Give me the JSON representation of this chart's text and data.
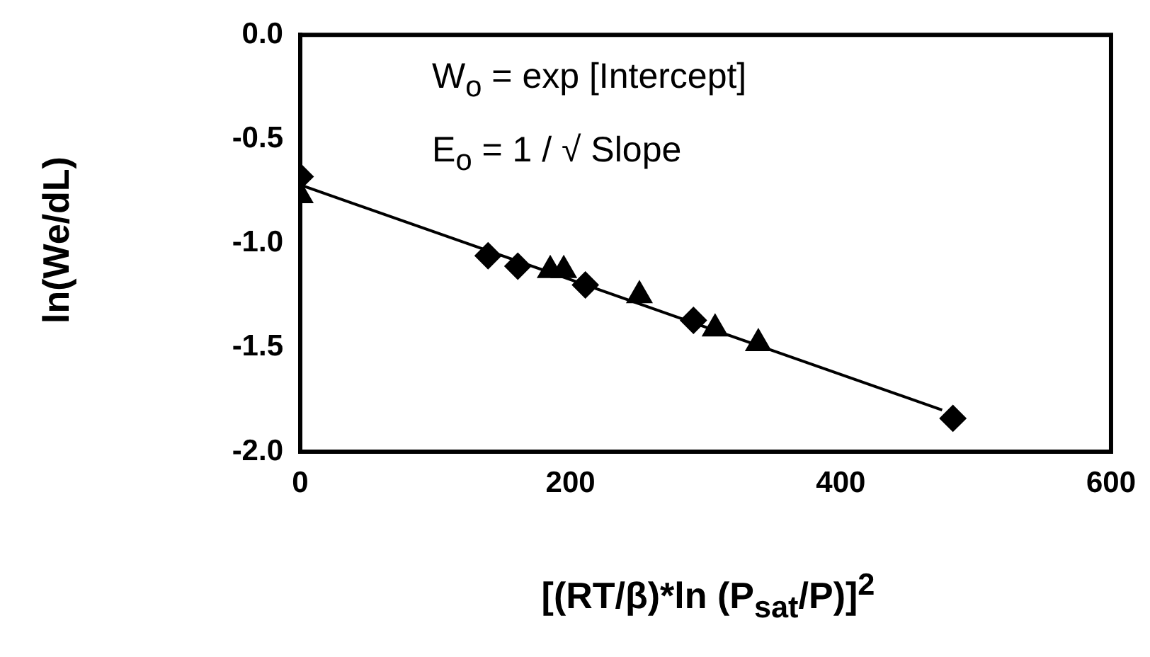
{
  "chart_data": {
    "type": "scatter",
    "xlabel": "[(RT/β)*ln (P$_{sat}$/P)]$^{2}$",
    "ylabel": "ln(We/dL)",
    "xlim": [
      0,
      600
    ],
    "xticks": [
      0,
      200,
      400,
      600
    ],
    "ylim": [
      -2.0,
      0.0
    ],
    "yticks": [
      {
        "value": -2,
        "label": "-2.0"
      },
      {
        "value": -1.5,
        "label": "-1.5"
      },
      {
        "value": -1,
        "label": "-1.0"
      },
      {
        "value": -0.5,
        "label": "-0.5"
      },
      {
        "value": 0,
        "label": "0.0"
      }
    ],
    "grid": false,
    "legend": false,
    "annotations": [
      "W$_{o}$ = exp [Intercept]",
      "E$_{o}$ = 1 / √ Slope"
    ],
    "series": [
      {
        "marker": "diamond",
        "color": "#000000",
        "x": [
          0,
          139,
          161,
          211,
          291,
          483
        ],
        "values": [
          -0.68,
          -1.06,
          -1.11,
          -1.2,
          -1.37,
          -1.84
        ]
      },
      {
        "marker": "triangle",
        "color": "#000000",
        "x": [
          0,
          185,
          195,
          251,
          307,
          339
        ],
        "values": [
          -0.77,
          -1.13,
          -1.13,
          -1.25,
          -1.41,
          -1.48
        ]
      },
      {
        "type": "line",
        "marker": "none",
        "line_style": "solid",
        "color": "#000000",
        "x": [
          0,
          475
        ],
        "values": [
          -0.72,
          -1.8
        ]
      }
    ]
  }
}
